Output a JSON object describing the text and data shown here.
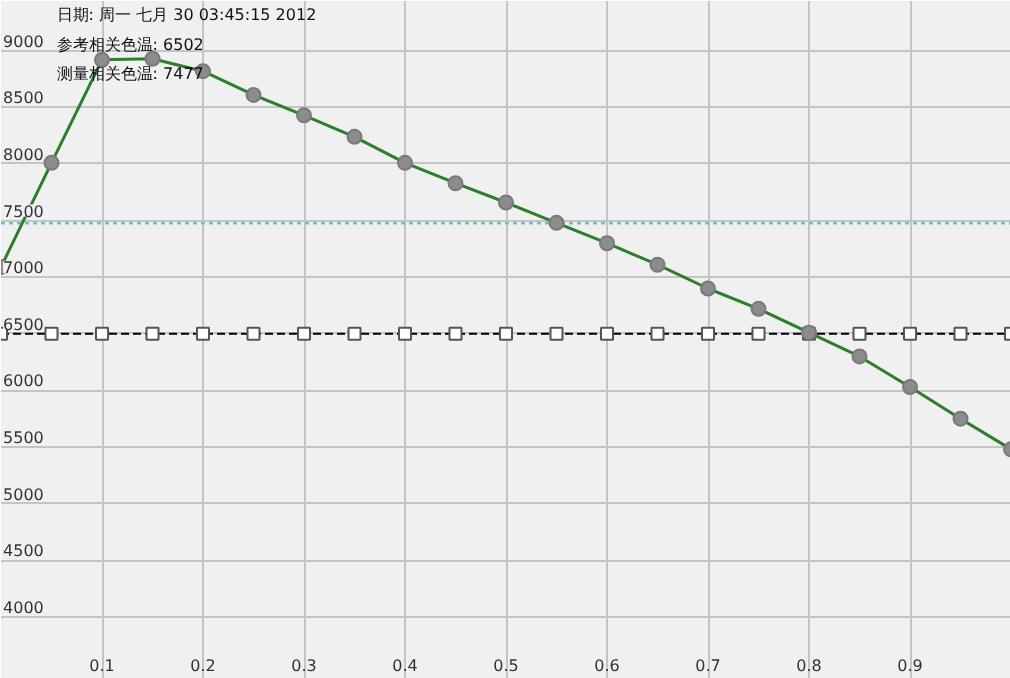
{
  "chart_data": {
    "type": "line",
    "annotations": [
      "日期: 周一 七月 30 03:45:15 2012",
      "参考相关色温: 6502",
      "测量相关色温: 7477"
    ],
    "x": [
      0,
      0.05,
      0.1,
      0.15,
      0.2,
      0.25,
      0.3,
      0.35,
      0.4,
      0.45,
      0.5,
      0.55,
      0.6,
      0.65,
      0.7,
      0.75,
      0.8,
      0.85,
      0.9,
      0.95,
      1.0
    ],
    "series": [
      {
        "color": "#2e7d2e",
        "marker": "circle",
        "line_style": "solid",
        "values": [
          7090,
          8010,
          8920,
          8930,
          8820,
          8610,
          8430,
          8240,
          8010,
          7830,
          7660,
          7480,
          7300,
          7110,
          6900,
          6720,
          6510,
          6300,
          6030,
          5750,
          5480
        ]
      },
      {
        "color": "#000000",
        "marker": "square",
        "line_style": "dashed",
        "values": [
          6500,
          6500,
          6500,
          6500,
          6500,
          6500,
          6500,
          6500,
          6500,
          6500,
          6500,
          6500,
          6500,
          6500,
          6500,
          6500,
          6500,
          6500,
          6500,
          6500,
          6500
        ]
      }
    ],
    "ref_lines": [
      {
        "axis": "y",
        "value": 7477,
        "color": "#7fb8c8",
        "line_style": "dotted"
      }
    ],
    "xlim": [
      0,
      1.0
    ],
    "ylim": [
      3450,
      9440
    ],
    "xticks": [
      0.1,
      0.2,
      0.3,
      0.4,
      0.5,
      0.6,
      0.7,
      0.8,
      0.9
    ],
    "yticks": [
      4000,
      4500,
      5000,
      5500,
      6000,
      6500,
      7000,
      7500,
      8000,
      8500,
      9000
    ],
    "grid": true
  }
}
